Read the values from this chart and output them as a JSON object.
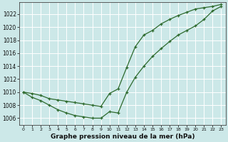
{
  "title": "Graphe pression niveau de la mer (hPa)",
  "bg_color": "#cce8e8",
  "grid_color": "#ffffff",
  "line_color": "#2d6a2d",
  "line1_x": [
    0,
    1,
    2,
    3,
    4,
    5,
    6,
    7,
    8,
    9,
    10,
    11,
    12,
    13,
    14,
    15,
    16,
    17,
    18,
    19,
    20,
    21,
    22,
    23
  ],
  "line1_y": [
    1010.0,
    1009.2,
    1008.7,
    1008.0,
    1007.3,
    1006.8,
    1006.4,
    1006.2,
    1006.0,
    1006.0,
    1007.0,
    1006.8,
    1010.0,
    1012.3,
    1014.0,
    1015.5,
    1016.7,
    1017.8,
    1018.8,
    1019.5,
    1020.2,
    1021.2,
    1022.5,
    1023.2
  ],
  "line2_x": [
    0,
    1,
    2,
    3,
    4,
    5,
    6,
    7,
    8,
    9,
    10,
    11,
    12,
    13,
    14,
    15,
    16,
    17,
    18,
    19,
    20,
    21,
    22,
    23
  ],
  "line2_y": [
    1010.0,
    1009.8,
    1009.5,
    1009.0,
    1008.8,
    1008.6,
    1008.4,
    1008.2,
    1008.0,
    1007.8,
    1009.8,
    1010.5,
    1013.8,
    1017.0,
    1018.8,
    1019.5,
    1020.5,
    1021.2,
    1021.8,
    1022.3,
    1022.8,
    1023.0,
    1023.2,
    1023.5
  ],
  "xlim": [
    -0.5,
    23.5
  ],
  "ylim": [
    1005.0,
    1023.8
  ],
  "yticks": [
    1006,
    1008,
    1010,
    1012,
    1014,
    1016,
    1018,
    1020,
    1022
  ],
  "xticks": [
    0,
    1,
    2,
    3,
    4,
    5,
    6,
    7,
    8,
    9,
    10,
    11,
    12,
    13,
    14,
    15,
    16,
    17,
    18,
    19,
    20,
    21,
    22,
    23
  ],
  "xlabel_fontsize": 6.5,
  "ytick_fontsize": 5.5,
  "xtick_fontsize": 4.5
}
